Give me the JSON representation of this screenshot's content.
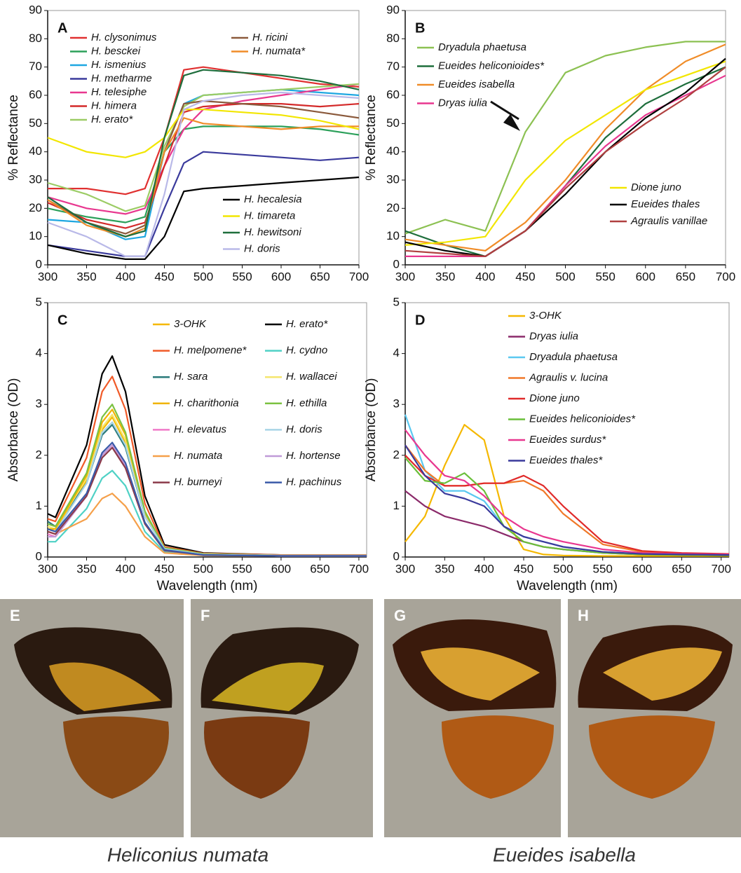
{
  "chart_data": [
    {
      "type": "line",
      "panel_label": "A",
      "y_label": "% Reflectance",
      "x": [
        300,
        350,
        400,
        425,
        450,
        475,
        500,
        550,
        600,
        650,
        700
      ],
      "xlim": [
        300,
        700
      ],
      "xticks": [
        300,
        350,
        400,
        450,
        500,
        550,
        600,
        650,
        700
      ],
      "ylim": [
        0,
        90
      ],
      "yticks": [
        0,
        10,
        20,
        30,
        40,
        50,
        60,
        70,
        80,
        90
      ],
      "series": [
        {
          "name": "H. clysonimus",
          "color": "#e03030",
          "values": [
            27,
            27,
            25,
            27,
            45,
            69,
            70,
            68,
            66,
            64,
            63
          ]
        },
        {
          "name": "H. besckei",
          "color": "#2ca05a",
          "values": [
            20,
            17,
            15,
            17,
            40,
            48,
            49,
            49,
            49,
            48,
            46
          ]
        },
        {
          "name": "H. ismenius",
          "color": "#1ea7e1",
          "values": [
            16,
            15,
            9,
            10,
            40,
            57,
            60,
            61,
            62,
            61,
            60
          ]
        },
        {
          "name": "H. metharme",
          "color": "#3a3a9c",
          "values": [
            7,
            5,
            3,
            3,
            20,
            36,
            40,
            39,
            38,
            37,
            38
          ]
        },
        {
          "name": "H. telesiphe",
          "color": "#e8378f",
          "values": [
            24,
            20,
            18,
            20,
            35,
            48,
            55,
            58,
            60,
            62,
            64
          ]
        },
        {
          "name": "H. himera",
          "color": "#d42a2a",
          "values": [
            22,
            16,
            13,
            15,
            35,
            54,
            56,
            57,
            57,
            56,
            57
          ]
        },
        {
          "name": "H. erato*",
          "color": "#9ccc65",
          "values": [
            29,
            25,
            19,
            21,
            42,
            56,
            60,
            61,
            62,
            63,
            64
          ]
        },
        {
          "name": "H. ricini",
          "color": "#8b5a3c",
          "values": [
            23,
            15,
            11,
            14,
            40,
            57,
            58,
            57,
            56,
            54,
            52
          ]
        },
        {
          "name": "H. numata*",
          "color": "#f08c28",
          "values": [
            23,
            14,
            10,
            13,
            40,
            52,
            50,
            49,
            48,
            49,
            49
          ]
        },
        {
          "name": "H. hecalesia",
          "color": "#000000",
          "values": [
            7,
            4,
            2,
            2,
            10,
            26,
            27,
            28,
            29,
            30,
            31
          ]
        },
        {
          "name": "H. timareta",
          "color": "#f2e600",
          "values": [
            45,
            40,
            38,
            40,
            45,
            55,
            55,
            54,
            53,
            51,
            48
          ]
        },
        {
          "name": "H. hewitsoni",
          "color": "#1e6e3c",
          "values": [
            24,
            15,
            10,
            12,
            45,
            67,
            69,
            68,
            67,
            65,
            62
          ]
        },
        {
          "name": "H. doris",
          "color": "#b9b9e8",
          "values": [
            15,
            10,
            3,
            3,
            25,
            55,
            58,
            60,
            61,
            60,
            59
          ]
        }
      ]
    },
    {
      "type": "line",
      "panel_label": "B",
      "y_label": "% Reflectance",
      "x": [
        300,
        350,
        400,
        450,
        500,
        550,
        600,
        650,
        700
      ],
      "xlim": [
        300,
        700
      ],
      "xticks": [
        300,
        350,
        400,
        450,
        500,
        550,
        600,
        650,
        700
      ],
      "ylim": [
        0,
        90
      ],
      "yticks": [
        0,
        10,
        20,
        30,
        40,
        50,
        60,
        70,
        80,
        90
      ],
      "series": [
        {
          "name": "Dryadula phaetusa",
          "color": "#8cc152",
          "values": [
            11,
            16,
            12,
            47,
            68,
            74,
            77,
            79,
            79
          ]
        },
        {
          "name": "Eueides heliconioides*",
          "color": "#1e6e3c",
          "values": [
            12,
            7,
            3,
            12,
            28,
            45,
            57,
            64,
            70
          ]
        },
        {
          "name": "Eueides isabella",
          "color": "#f08c28",
          "values": [
            9,
            7,
            5,
            15,
            30,
            48,
            62,
            72,
            78
          ]
        },
        {
          "name": "Dryas iulia",
          "color": "#e8378f",
          "values": [
            3,
            3,
            3,
            12,
            28,
            42,
            53,
            60,
            67
          ]
        },
        {
          "name": "Dione juno",
          "color": "#f2e600",
          "values": [
            7,
            8,
            10,
            30,
            44,
            53,
            62,
            67,
            72
          ]
        },
        {
          "name": "Eueides thales",
          "color": "#000000",
          "values": [
            8,
            5,
            3,
            12,
            25,
            40,
            52,
            61,
            73
          ]
        },
        {
          "name": "Agraulis vanillae",
          "color": "#b04040",
          "values": [
            5,
            4,
            3,
            12,
            27,
            40,
            50,
            59,
            70
          ]
        }
      ]
    },
    {
      "type": "line",
      "panel_label": "C",
      "y_label": "Absorbance (OD)",
      "x_label": "Wavelength (nm)",
      "x": [
        300,
        310,
        350,
        370,
        383,
        400,
        425,
        450,
        500,
        600,
        710
      ],
      "xlim": [
        300,
        710
      ],
      "xticks": [
        300,
        350,
        400,
        450,
        500,
        550,
        600,
        650,
        700
      ],
      "ylim": [
        0,
        5
      ],
      "yticks": [
        0,
        1,
        2,
        3,
        4,
        5
      ],
      "series": [
        {
          "name": "3-OHK",
          "color": "#f5b800",
          "values": [
            0.6,
            0.55,
            1.5,
            2.5,
            2.75,
            2.25,
            0.8,
            0.16,
            0.05,
            0.03,
            0.03
          ]
        },
        {
          "name": "H. erato*",
          "color": "#000000",
          "values": [
            0.85,
            0.78,
            2.2,
            3.6,
            3.95,
            3.25,
            1.2,
            0.24,
            0.08,
            0.04,
            0.04
          ]
        },
        {
          "name": "H. melpomene*",
          "color": "#f05a28",
          "values": [
            0.75,
            0.7,
            1.95,
            3.25,
            3.55,
            2.9,
            1.05,
            0.2,
            0.07,
            0.04,
            0.04
          ]
        },
        {
          "name": "H. cydno",
          "color": "#4fd1c5",
          "values": [
            0.3,
            0.3,
            0.95,
            1.55,
            1.7,
            1.4,
            0.5,
            0.1,
            0.04,
            0.02,
            0.02
          ]
        },
        {
          "name": "H. sara",
          "color": "#2a7a7a",
          "values": [
            0.7,
            0.6,
            1.45,
            2.4,
            2.6,
            2.15,
            0.8,
            0.16,
            0.05,
            0.03,
            0.03
          ]
        },
        {
          "name": "H. wallacei",
          "color": "#f5e66e",
          "values": [
            0.6,
            0.55,
            1.55,
            2.55,
            2.8,
            2.3,
            0.85,
            0.17,
            0.06,
            0.03,
            0.03
          ]
        },
        {
          "name": "H. charithonia",
          "color": "#f0b400",
          "values": [
            0.55,
            0.55,
            1.6,
            2.65,
            2.9,
            2.4,
            0.87,
            0.17,
            0.06,
            0.03,
            0.03
          ]
        },
        {
          "name": "H. ethilla",
          "color": "#7cc242",
          "values": [
            0.65,
            0.6,
            1.65,
            2.75,
            3.0,
            2.45,
            0.9,
            0.18,
            0.06,
            0.03,
            0.03
          ]
        },
        {
          "name": "H. elevatus",
          "color": "#f07ac8",
          "values": [
            0.45,
            0.4,
            1.2,
            2.0,
            2.2,
            1.8,
            0.66,
            0.13,
            0.04,
            0.02,
            0.02
          ]
        },
        {
          "name": "H. doris",
          "color": "#a8d4e6",
          "values": [
            0.55,
            0.5,
            1.45,
            2.45,
            2.65,
            2.2,
            0.8,
            0.16,
            0.05,
            0.03,
            0.03
          ]
        },
        {
          "name": "H. numata",
          "color": "#f5a04a",
          "values": [
            0.5,
            0.45,
            0.75,
            1.15,
            1.25,
            1.0,
            0.4,
            0.08,
            0.03,
            0.02,
            0.02
          ]
        },
        {
          "name": "H. hortense",
          "color": "#c09ad8",
          "values": [
            0.4,
            0.4,
            1.2,
            2.0,
            2.2,
            1.8,
            0.66,
            0.13,
            0.04,
            0.02,
            0.02
          ]
        },
        {
          "name": "H. burneyi",
          "color": "#8b3a4a",
          "values": [
            0.5,
            0.45,
            1.2,
            1.95,
            2.15,
            1.75,
            0.65,
            0.13,
            0.04,
            0.02,
            0.02
          ]
        },
        {
          "name": "H. pachinus",
          "color": "#3a5aa8",
          "values": [
            0.55,
            0.5,
            1.25,
            2.05,
            2.25,
            1.85,
            0.68,
            0.14,
            0.04,
            0.02,
            0.02
          ]
        }
      ]
    },
    {
      "type": "line",
      "panel_label": "D",
      "y_label": "Absorbance (OD)",
      "x_label": "Wavelength (nm)",
      "x": [
        300,
        325,
        350,
        375,
        400,
        425,
        450,
        475,
        500,
        550,
        600,
        650,
        710
      ],
      "xlim": [
        300,
        710
      ],
      "xticks": [
        300,
        350,
        400,
        450,
        500,
        550,
        600,
        650,
        700
      ],
      "ylim": [
        0,
        5
      ],
      "yticks": [
        0,
        1,
        2,
        3,
        4,
        5
      ],
      "series": [
        {
          "name": "3-OHK",
          "color": "#f5b800",
          "values": [
            0.3,
            0.8,
            1.8,
            2.6,
            2.3,
            0.8,
            0.15,
            0.05,
            0.03,
            0.02,
            0.02,
            0.02,
            0.02
          ]
        },
        {
          "name": "Dryas iulia",
          "color": "#8b2a6a",
          "values": [
            1.3,
            1.0,
            0.8,
            0.7,
            0.6,
            0.45,
            0.3,
            0.2,
            0.15,
            0.08,
            0.05,
            0.04,
            0.03
          ]
        },
        {
          "name": "Dryadula phaetusa",
          "color": "#5ac8f0",
          "values": [
            2.8,
            1.7,
            1.3,
            1.3,
            1.1,
            0.6,
            0.4,
            0.3,
            0.2,
            0.1,
            0.06,
            0.05,
            0.04
          ]
        },
        {
          "name": "Agraulis v. lucina",
          "color": "#f07828",
          "values": [
            2.2,
            1.7,
            1.4,
            1.4,
            1.45,
            1.45,
            1.5,
            1.3,
            0.85,
            0.25,
            0.1,
            0.06,
            0.05
          ]
        },
        {
          "name": "Dione juno",
          "color": "#e02a2a",
          "values": [
            2.0,
            1.6,
            1.4,
            1.4,
            1.45,
            1.45,
            1.6,
            1.4,
            1.0,
            0.3,
            0.12,
            0.08,
            0.06
          ]
        },
        {
          "name": "Eueides heliconioides*",
          "color": "#6abf3a",
          "values": [
            1.95,
            1.5,
            1.45,
            1.65,
            1.3,
            0.6,
            0.3,
            0.2,
            0.15,
            0.08,
            0.05,
            0.04,
            0.03
          ]
        },
        {
          "name": "Eueides surdus*",
          "color": "#e8378f",
          "values": [
            2.5,
            2.0,
            1.6,
            1.5,
            1.2,
            0.8,
            0.55,
            0.4,
            0.3,
            0.15,
            0.08,
            0.06,
            0.05
          ]
        },
        {
          "name": "Eueides thales*",
          "color": "#3a3a9c",
          "values": [
            2.2,
            1.6,
            1.25,
            1.15,
            1.0,
            0.6,
            0.4,
            0.3,
            0.2,
            0.1,
            0.06,
            0.05,
            0.04
          ]
        }
      ]
    }
  ],
  "photos": {
    "panels": [
      "E",
      "F",
      "G",
      "H"
    ],
    "captions": [
      "Heliconius numata",
      "Eueides isabella"
    ]
  }
}
